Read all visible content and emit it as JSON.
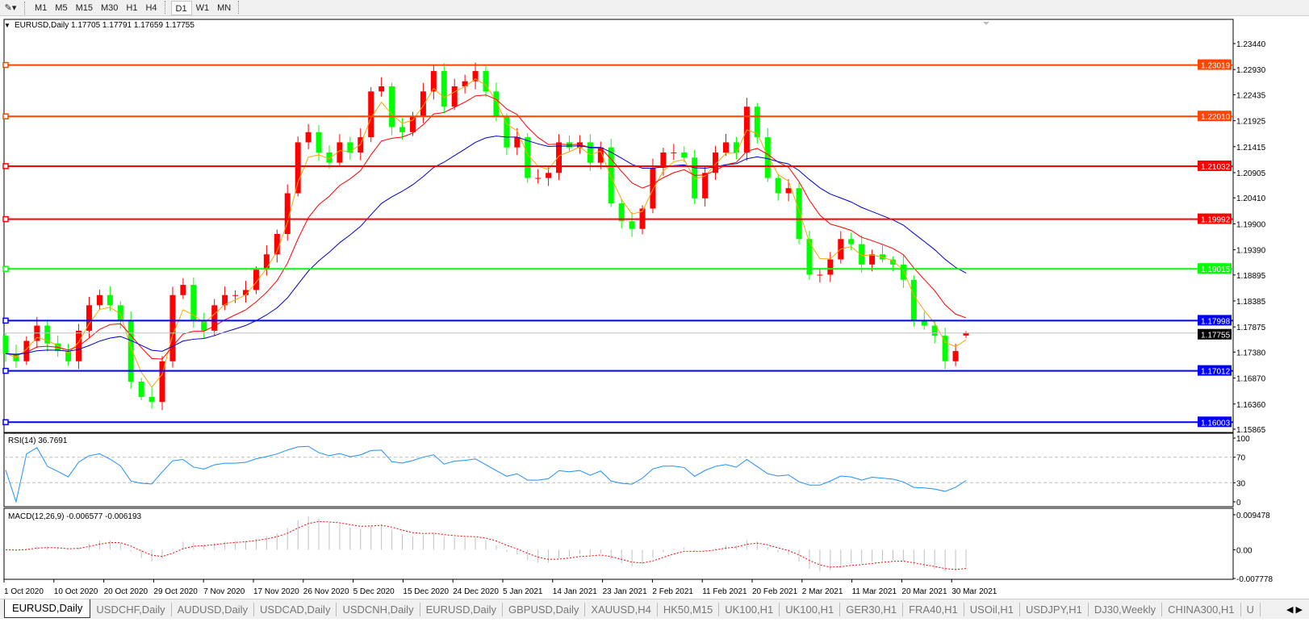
{
  "toolbar": {
    "tools_icon": "line-tools-icon",
    "timeframes": [
      "M1",
      "M5",
      "M15",
      "M30",
      "H1",
      "H4",
      "D1",
      "W1",
      "MN"
    ],
    "active_timeframe": "D1"
  },
  "chart_header": {
    "symbol": "EURUSD,Daily",
    "ohlc": "1.17705 1.17791 1.17659 1.17755"
  },
  "colors": {
    "bull": "#ff0000",
    "bear": "#00ff00",
    "ma_fast": "#ffa500",
    "ma_mid": "#ff0000",
    "ma_slow": "#0000cd",
    "rsi": "#1e90ff",
    "macd_hist": "#c0c0c0",
    "macd_signal": "#ff0000"
  },
  "chart_data": {
    "type": "candlestick",
    "symbol": "EURUSD",
    "timeframe": "Daily",
    "closes": [
      1.1735,
      1.172,
      1.176,
      1.179,
      1.1755,
      1.174,
      1.172,
      1.178,
      1.183,
      1.185,
      1.183,
      1.18,
      1.168,
      1.165,
      1.164,
      1.172,
      1.185,
      1.187,
      1.18,
      1.178,
      1.183,
      1.185,
      1.185,
      1.186,
      1.19,
      1.193,
      1.197,
      1.205,
      1.215,
      1.217,
      1.213,
      1.211,
      1.215,
      1.213,
      1.216,
      1.225,
      1.226,
      1.218,
      1.217,
      1.22,
      1.225,
      1.229,
      1.222,
      1.226,
      1.227,
      1.229,
      1.225,
      1.22,
      1.214,
      1.216,
      1.208,
      1.208,
      1.209,
      1.215,
      1.214,
      1.215,
      1.211,
      1.214,
      1.203,
      1.1995,
      1.198,
      1.202,
      1.21,
      1.213,
      1.213,
      1.212,
      1.204,
      1.209,
      1.213,
      1.215,
      1.213,
      1.222,
      1.216,
      1.208,
      1.205,
      1.206,
      1.196,
      1.189,
      1.189,
      1.192,
      1.196,
      1.195,
      1.191,
      1.193,
      1.192,
      1.191,
      1.188,
      1.18,
      1.179,
      1.177,
      1.172,
      1.174,
      1.17755
    ],
    "last_bar": {
      "open": 1.17705,
      "high": 1.17791,
      "low": 1.17659,
      "close": 1.17755
    },
    "price_ticks": [
      "1.23440",
      "1.22930",
      "1.22435",
      "1.21925",
      "1.21415",
      "1.20905",
      "1.20410",
      "1.19900",
      "1.19390",
      "1.18895",
      "1.18385",
      "1.17875",
      "1.17380",
      "1.16870",
      "1.16360",
      "1.15865"
    ],
    "ylim": [
      1.15865,
      1.2344
    ],
    "levels": [
      {
        "price": "1.23019",
        "color": "#ff4500"
      },
      {
        "price": "1.22010",
        "color": "#ff4500"
      },
      {
        "price": "1.21032",
        "color": "#ff0000"
      },
      {
        "price": "1.19992",
        "color": "#ff0000"
      },
      {
        "price": "1.19015",
        "color": "#00ff00"
      },
      {
        "price": "1.17998",
        "color": "#0000ff"
      },
      {
        "price": "1.17012",
        "color": "#0000ff"
      },
      {
        "price": "1.16003",
        "color": "#0000ff"
      }
    ],
    "current_price": "1.17755",
    "date_ticks": [
      "1 Oct 2020",
      "10 Oct 2020",
      "20 Oct 2020",
      "29 Oct 2020",
      "7 Nov 2020",
      "17 Nov 2020",
      "26 Nov 2020",
      "5 Dec 2020",
      "15 Dec 2020",
      "24 Dec 2020",
      "5 Jan 2021",
      "14 Jan 2021",
      "23 Jan 2021",
      "2 Feb 2021",
      "11 Feb 2021",
      "20 Feb 2021",
      "2 Mar 2021",
      "11 Mar 2021",
      "20 Mar 2021",
      "30 Mar 2021"
    ],
    "rsi": {
      "label": "RSI(14) 36.7691",
      "ticks": [
        "100",
        "70",
        "30",
        "0"
      ],
      "levels": [
        70,
        30
      ]
    },
    "macd": {
      "label": "MACD(12,26,9) -0.006577 -0.006193",
      "ticks": [
        "0.009478",
        "0.00",
        "-0.007778"
      ],
      "ylim": [
        -0.007778,
        0.009478
      ]
    }
  },
  "tabs": [
    "EURUSD,Daily",
    "USDCHF,Daily",
    "AUDUSD,Daily",
    "USDCAD,Daily",
    "USDCNH,Daily",
    "EURUSD,Daily",
    "GBPUSD,Daily",
    "XAUUSD,H4",
    "HK50,M15",
    "UK100,H1",
    "UK100,H1",
    "GER30,H1",
    "FRA40,H1",
    "USOil,H1",
    "USDJPY,H1",
    "DJ30,Weekly",
    "CHINA300,H1",
    "U"
  ],
  "tab_scroll": "◀ ▶"
}
